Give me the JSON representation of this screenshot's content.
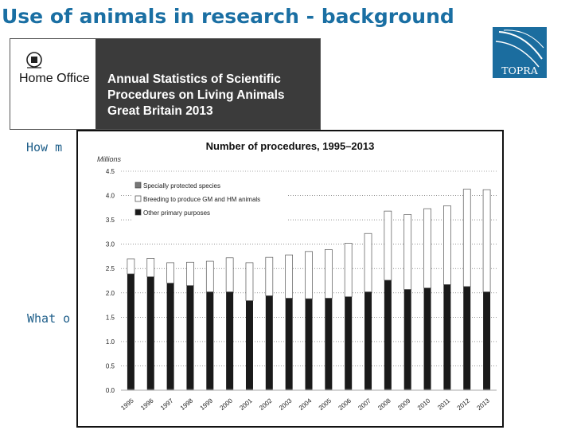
{
  "slide": {
    "title": "Use of animals in research - background",
    "logo_text": "TOPRA",
    "banner": {
      "department": "Home Office",
      "report_title": "Annual Statistics of Scientific\nProcedures on Living Animals\nGreat Britain 2013"
    },
    "partial_text_1": "How m",
    "partial_text_2": "What o"
  },
  "colors": {
    "title": "#1a6fa3",
    "logo_bg": "#1b6d9f",
    "banner_dark": "#3b3b3b",
    "bar_dark": "#1a1a1a",
    "bar_open": "#ffffff"
  },
  "chart_data": {
    "type": "bar",
    "stacked": true,
    "title": "Number of procedures, 1995–2013",
    "units_label": "Millions",
    "categories": [
      "1995",
      "1996",
      "1997",
      "1998",
      "1999",
      "2000",
      "2001",
      "2002",
      "2003",
      "2004",
      "2005",
      "2006",
      "2007",
      "2008",
      "2009",
      "2010",
      "2011",
      "2012",
      "2013"
    ],
    "series": [
      {
        "name": "Specially protected species",
        "values": [
          0.02,
          0.02,
          0.02,
          0.02,
          0.02,
          0.02,
          0.02,
          0.02,
          0.02,
          0.02,
          0.02,
          0.02,
          0.02,
          0.02,
          0.02,
          0.02,
          0.02,
          0.02,
          0.02
        ]
      },
      {
        "name": "Other primary purposes",
        "values": [
          2.37,
          2.31,
          2.18,
          2.13,
          2.0,
          2.0,
          1.82,
          1.92,
          1.87,
          1.86,
          1.87,
          1.9,
          2.0,
          2.24,
          2.05,
          2.08,
          2.15,
          2.11,
          2.0
        ]
      },
      {
        "name": "Breeding to produce GM and HM animals",
        "values": [
          0.31,
          0.38,
          0.42,
          0.48,
          0.63,
          0.7,
          0.78,
          0.79,
          0.89,
          0.97,
          1.0,
          1.1,
          1.2,
          1.42,
          1.54,
          1.63,
          1.62,
          2.0,
          2.1
        ]
      }
    ],
    "legend_order": [
      "Specially protected species",
      "Breeding to produce GM and HM animals",
      "Other primary purposes"
    ],
    "yticks": [
      "4.5",
      "4.0",
      "3.5",
      "3.0",
      "2.5",
      "2.0",
      "1.5",
      "1.0",
      "0.5",
      "0.0"
    ],
    "ylim": [
      0,
      4.5
    ],
    "grid": "dotted horizontal",
    "legend_position": "top-left"
  }
}
